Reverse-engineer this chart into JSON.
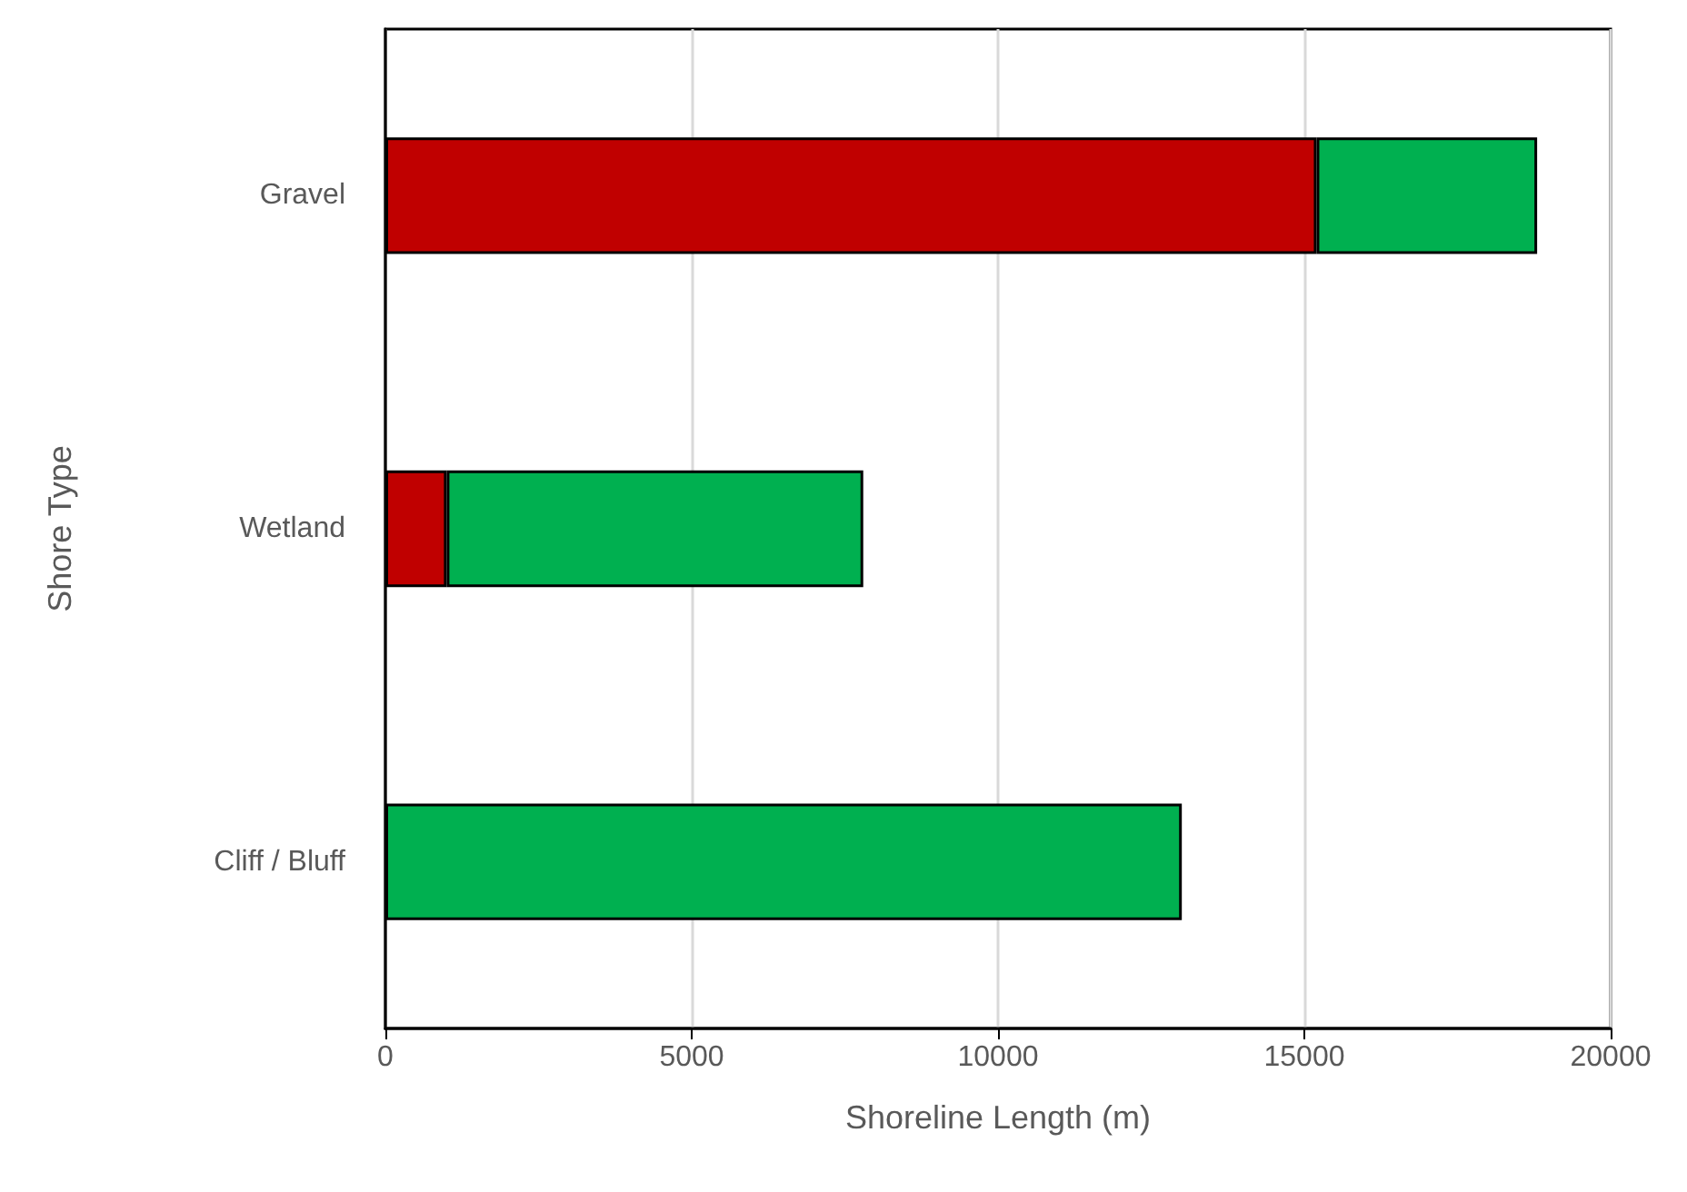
{
  "chart_data": {
    "type": "bar",
    "orientation": "horizontal",
    "stacked": true,
    "xlabel": "Shoreline Length (m)",
    "ylabel": "Shore Type",
    "categories": [
      "Gravel",
      "Wetland",
      "Cliff / Bluff"
    ],
    "series": [
      {
        "color": "#c00000",
        "values": [
          15200,
          1000,
          null
        ]
      },
      {
        "color": "#00b050",
        "values": [
          3600,
          6800,
          13000
        ]
      }
    ],
    "xlim": [
      0,
      20000
    ],
    "xticks": [
      0,
      5000,
      10000,
      15000,
      20000
    ],
    "grid": "x"
  }
}
